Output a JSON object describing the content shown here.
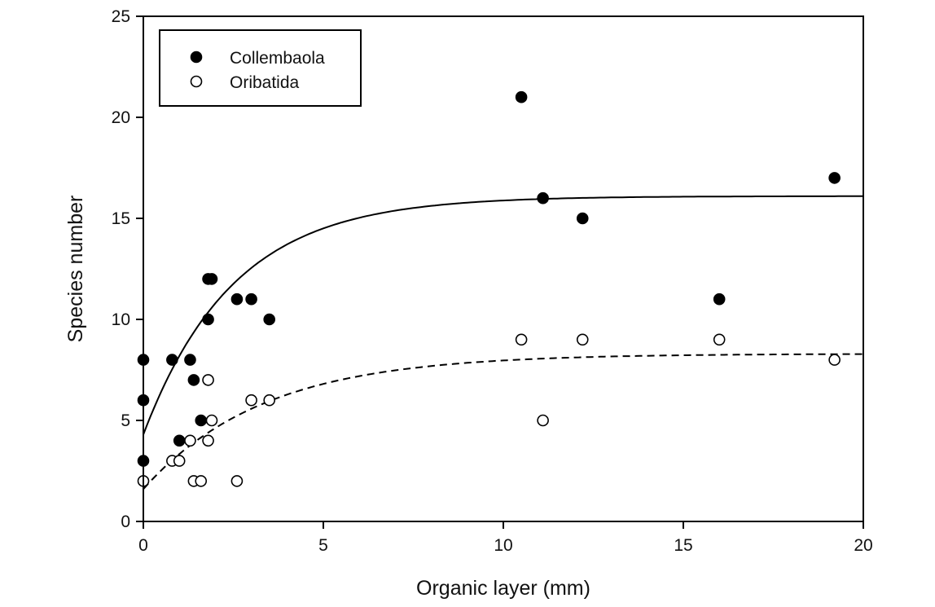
{
  "chart_data": {
    "type": "scatter",
    "xlabel": "Organic layer (mm)",
    "ylabel": "Species number",
    "xlim": [
      0,
      20
    ],
    "ylim": [
      0,
      25
    ],
    "xticks": [
      0,
      5,
      10,
      15,
      20
    ],
    "yticks": [
      0,
      5,
      10,
      15,
      20,
      25
    ],
    "grid": false,
    "legend_position": "top-left",
    "series": [
      {
        "name": "Collembaola",
        "marker": "filled-circle",
        "color": "#000000",
        "points": [
          [
            0,
            8
          ],
          [
            0,
            6
          ],
          [
            0,
            3
          ],
          [
            0.8,
            8
          ],
          [
            1.0,
            4
          ],
          [
            1.3,
            8
          ],
          [
            1.4,
            7
          ],
          [
            1.6,
            5
          ],
          [
            1.8,
            12
          ],
          [
            1.9,
            12
          ],
          [
            1.8,
            10
          ],
          [
            2.6,
            11
          ],
          [
            3.0,
            11
          ],
          [
            3.5,
            10
          ],
          [
            10.5,
            21
          ],
          [
            11.1,
            16
          ],
          [
            12.2,
            15
          ],
          [
            16.0,
            11
          ],
          [
            19.2,
            17
          ]
        ],
        "fit": {
          "style": "solid",
          "model": "a - b*exp(-c*x)",
          "a": 16.1,
          "b": 11.8,
          "c": 0.4
        }
      },
      {
        "name": "Oribatida",
        "marker": "open-circle",
        "color": "#000000",
        "points": [
          [
            0,
            2
          ],
          [
            0.8,
            3
          ],
          [
            1.0,
            3
          ],
          [
            1.3,
            4
          ],
          [
            1.4,
            2
          ],
          [
            1.6,
            2
          ],
          [
            1.8,
            7
          ],
          [
            1.9,
            5
          ],
          [
            1.8,
            4
          ],
          [
            2.6,
            2
          ],
          [
            3.0,
            6
          ],
          [
            3.5,
            6
          ],
          [
            10.5,
            9
          ],
          [
            11.1,
            5
          ],
          [
            12.2,
            9
          ],
          [
            16.0,
            9
          ],
          [
            19.2,
            8
          ]
        ],
        "fit": {
          "style": "dashed",
          "model": "a - b*exp(-c*x)",
          "a": 8.3,
          "b": 6.7,
          "c": 0.3
        }
      }
    ]
  }
}
